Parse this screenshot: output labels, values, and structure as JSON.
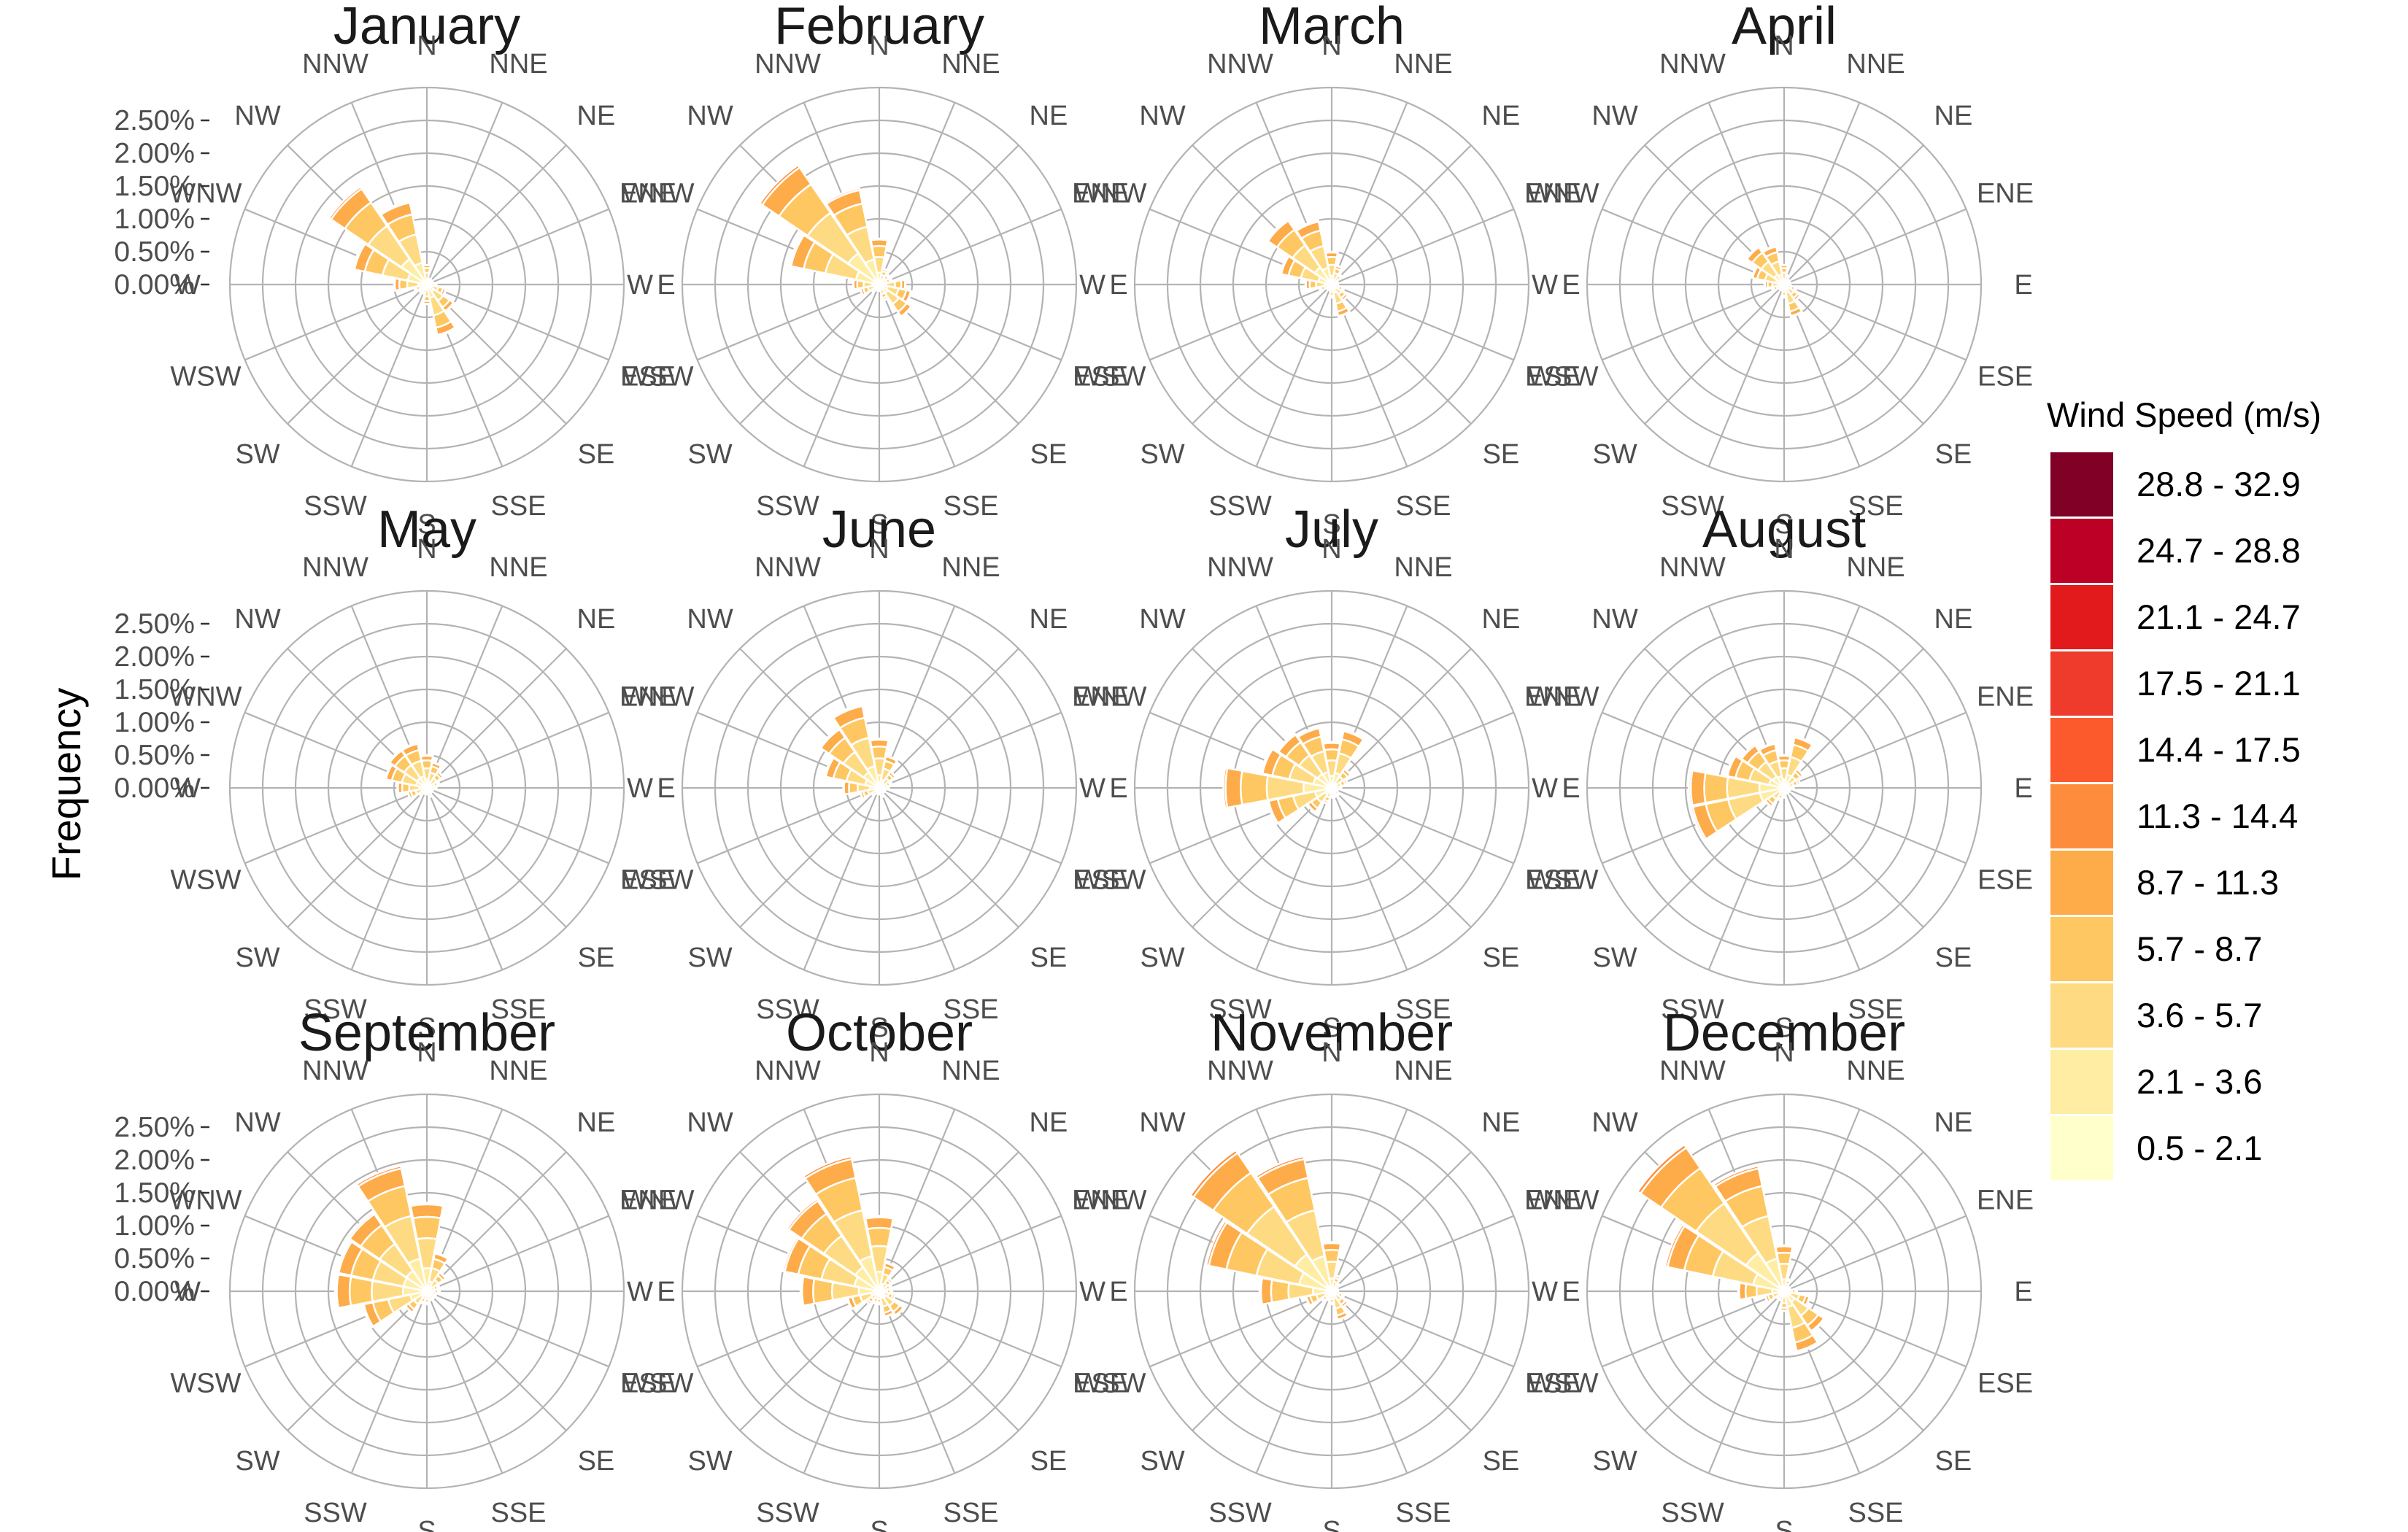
{
  "chart_data": {
    "type": "windrose",
    "ylabel": "Frequency",
    "y_ticks": [
      "0.00%",
      "0.50%",
      "1.00%",
      "1.50%",
      "2.00%",
      "2.50%"
    ],
    "y_max_percent": 3.0,
    "directions": [
      "N",
      "NNE",
      "NE",
      "ENE",
      "E",
      "ESE",
      "SE",
      "SSE",
      "S",
      "SSW",
      "SW",
      "WSW",
      "W",
      "WNW",
      "NW",
      "NNW"
    ],
    "legend": {
      "title": "Wind Speed (m/s)",
      "bins": [
        {
          "label": "28.8 - 32.9",
          "color": "#800026"
        },
        {
          "label": "24.7 - 28.8",
          "color": "#BD0026"
        },
        {
          "label": "21.1 - 24.7",
          "color": "#E31A1C"
        },
        {
          "label": "17.5 - 21.1",
          "color": "#EF3B2C"
        },
        {
          "label": "14.4 - 17.5",
          "color": "#FC5A2D"
        },
        {
          "label": "11.3 - 14.4",
          "color": "#FD8D3C"
        },
        {
          "label": "8.7 - 11.3",
          "color": "#FEAB49"
        },
        {
          "label": "5.7 - 8.7",
          "color": "#FEC761"
        },
        {
          "label": "3.6 - 5.7",
          "color": "#FEDB83"
        },
        {
          "label": "2.1 - 3.6",
          "color": "#FFEDA3"
        },
        {
          "label": "0.5 - 2.1",
          "color": "#FFFFCC"
        }
      ]
    },
    "panels": [
      {
        "month": "January",
        "totals": [
          0.3,
          0.1,
          0.1,
          0.1,
          0.15,
          0.3,
          0.5,
          0.8,
          0.3,
          0.15,
          0.15,
          0.2,
          0.5,
          1.15,
          1.8,
          1.3
        ]
      },
      {
        "month": "February",
        "totals": [
          0.7,
          0.25,
          0.2,
          0.2,
          0.4,
          0.5,
          0.6,
          0.25,
          0.1,
          0.1,
          0.15,
          0.3,
          0.4,
          1.4,
          2.2,
          1.5
        ]
      },
      {
        "month": "March",
        "totals": [
          0.5,
          0.3,
          0.2,
          0.1,
          0.1,
          0.2,
          0.3,
          0.5,
          0.2,
          0.1,
          0.1,
          0.2,
          0.4,
          0.8,
          1.2,
          1.0
        ]
      },
      {
        "month": "April",
        "totals": [
          0.3,
          0.15,
          0.1,
          0.1,
          0.1,
          0.2,
          0.3,
          0.5,
          0.2,
          0.1,
          0.1,
          0.2,
          0.3,
          0.5,
          0.7,
          0.6
        ]
      },
      {
        "month": "May",
        "totals": [
          0.5,
          0.4,
          0.3,
          0.2,
          0.15,
          0.1,
          0.1,
          0.15,
          0.1,
          0.1,
          0.15,
          0.3,
          0.45,
          0.65,
          0.7,
          0.7
        ]
      },
      {
        "month": "June",
        "totals": [
          0.75,
          0.5,
          0.3,
          0.2,
          0.15,
          0.1,
          0.1,
          0.15,
          0.1,
          0.1,
          0.15,
          0.3,
          0.55,
          0.85,
          1.1,
          1.3
        ]
      },
      {
        "month": "July",
        "totals": [
          0.7,
          0.9,
          0.35,
          0.25,
          0.15,
          0.1,
          0.15,
          0.15,
          0.15,
          0.25,
          0.45,
          1.0,
          1.65,
          1.1,
          1.0,
          0.95
        ]
      },
      {
        "month": "August",
        "totals": [
          0.5,
          0.8,
          0.35,
          0.25,
          0.15,
          0.1,
          0.1,
          0.1,
          0.15,
          0.2,
          0.35,
          1.45,
          1.45,
          0.9,
          0.8,
          0.7
        ]
      },
      {
        "month": "September",
        "totals": [
          1.35,
          0.6,
          0.35,
          0.2,
          0.2,
          0.15,
          0.15,
          0.15,
          0.2,
          0.2,
          0.4,
          1.0,
          1.4,
          1.4,
          1.45,
          1.95
        ]
      },
      {
        "month": "October",
        "totals": [
          1.15,
          0.45,
          0.25,
          0.2,
          0.2,
          0.25,
          0.45,
          0.4,
          0.2,
          0.2,
          0.25,
          0.5,
          1.2,
          1.5,
          1.7,
          2.1
        ]
      },
      {
        "month": "November",
        "totals": [
          0.75,
          0.25,
          0.15,
          0.1,
          0.1,
          0.2,
          0.3,
          0.45,
          0.2,
          0.15,
          0.2,
          0.4,
          1.1,
          1.95,
          2.6,
          2.1
        ]
      },
      {
        "month": "December",
        "totals": [
          0.7,
          0.2,
          0.1,
          0.1,
          0.2,
          0.4,
          0.75,
          0.95,
          0.3,
          0.15,
          0.15,
          0.3,
          0.7,
          1.85,
          2.7,
          1.95
        ]
      }
    ]
  }
}
